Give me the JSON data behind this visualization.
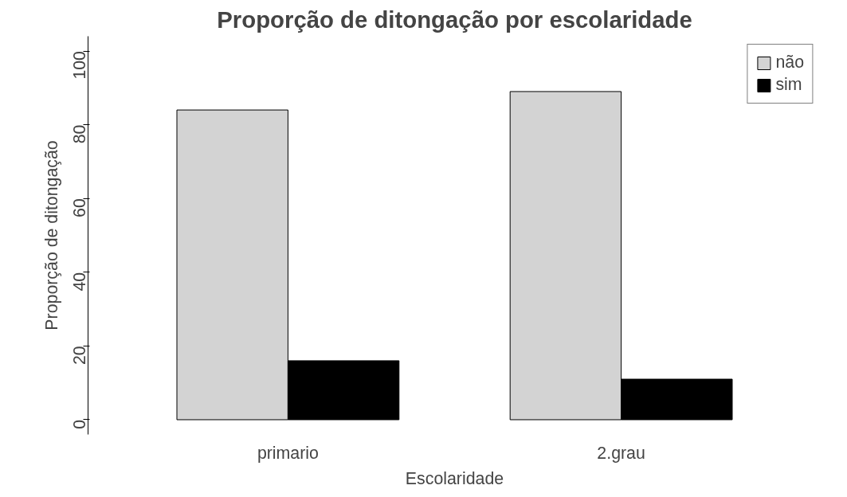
{
  "chart_data": {
    "type": "bar",
    "title": "Proporção de ditongação por escolaridade",
    "xlabel": "Escolaridade",
    "ylabel": "Proporção de ditongação",
    "categories": [
      "primario",
      "2.grau"
    ],
    "series": [
      {
        "name": "não",
        "color": "#d3d3d3",
        "values": [
          84,
          89
        ]
      },
      {
        "name": "sim",
        "color": "#000000",
        "values": [
          16,
          11
        ]
      }
    ],
    "ylim": [
      -4,
      104
    ],
    "yticks": [
      0,
      20,
      40,
      60,
      80,
      100
    ],
    "grid": false,
    "legend": "top right"
  }
}
